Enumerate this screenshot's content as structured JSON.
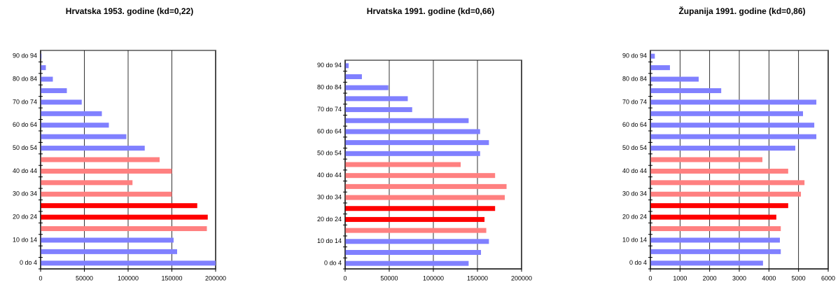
{
  "chart_data": [
    {
      "type": "bar",
      "title": "Hrvatska 1953. godine (kd=0,22)",
      "categories": [
        "0 do 4",
        null,
        "10 do 14",
        null,
        "20 do 24",
        null,
        "30 do 34",
        null,
        "40 do 44",
        null,
        "50 do 54",
        null,
        "60 do 64",
        null,
        "70 do 74",
        null,
        "80 do 84",
        null,
        "90 do 94"
      ],
      "values": [
        200000,
        156000,
        152000,
        190000,
        191000,
        179000,
        150000,
        105000,
        150000,
        136000,
        119000,
        98000,
        78000,
        70000,
        47000,
        30000,
        14000,
        6000,
        1000
      ],
      "colors": [
        "#8080ff",
        "#8080ff",
        "#8080ff",
        "#ff8080",
        "#ff0000",
        "#ff0000",
        "#ff8080",
        "#ff8080",
        "#ff8080",
        "#ff8080",
        "#8080ff",
        "#8080ff",
        "#8080ff",
        "#8080ff",
        "#8080ff",
        "#8080ff",
        "#8080ff",
        "#8080ff",
        "#8080ff"
      ],
      "xlim": [
        0,
        200000
      ],
      "xticks": [
        0,
        50000,
        100000,
        150000,
        200000
      ],
      "grid": true
    },
    {
      "type": "bar",
      "title": "Hrvatska 1991. godine (kd=0,66)",
      "categories": [
        "0 do 4",
        null,
        "10 do 14",
        null,
        "20 do 24",
        null,
        "30 do 34",
        null,
        "40 do 44",
        null,
        "50 do 54",
        null,
        "60 do 64",
        null,
        "70 do 74",
        null,
        "80 do 84",
        null,
        "90 do 94"
      ],
      "values": [
        140000,
        154000,
        163000,
        160000,
        158000,
        170000,
        181000,
        183000,
        170000,
        131000,
        153000,
        163000,
        153000,
        140000,
        76000,
        71000,
        49000,
        19000,
        4000
      ],
      "colors": [
        "#8080ff",
        "#8080ff",
        "#8080ff",
        "#ff8080",
        "#ff0000",
        "#ff0000",
        "#ff8080",
        "#ff8080",
        "#ff8080",
        "#ff8080",
        "#8080ff",
        "#8080ff",
        "#8080ff",
        "#8080ff",
        "#8080ff",
        "#8080ff",
        "#8080ff",
        "#8080ff",
        "#8080ff"
      ],
      "xlim": [
        0,
        200000
      ],
      "xticks": [
        0,
        50000,
        100000,
        150000,
        200000
      ],
      "grid": true
    },
    {
      "type": "bar",
      "title": "Županija 1991. godine (kd=0,86)",
      "categories": [
        "0 do 4",
        null,
        "10 do 14",
        null,
        "20 do 24",
        null,
        "30 do 34",
        null,
        "40 do 44",
        null,
        "50 do 54",
        null,
        "60 do 64",
        null,
        "70 do 74",
        null,
        "80 do 84",
        null,
        "90 do 94"
      ],
      "values": [
        3800,
        4400,
        4370,
        4400,
        4250,
        4650,
        5080,
        5200,
        4650,
        3780,
        4890,
        5600,
        5530,
        5150,
        5600,
        2390,
        1630,
        660,
        150
      ],
      "colors": [
        "#8080ff",
        "#8080ff",
        "#8080ff",
        "#ff8080",
        "#ff0000",
        "#ff0000",
        "#ff8080",
        "#ff8080",
        "#ff8080",
        "#ff8080",
        "#8080ff",
        "#8080ff",
        "#8080ff",
        "#8080ff",
        "#8080ff",
        "#8080ff",
        "#8080ff",
        "#8080ff",
        "#8080ff"
      ],
      "xlim": [
        0,
        6000
      ],
      "xticks": [
        0,
        1000,
        2000,
        3000,
        4000,
        5000,
        6000
      ],
      "grid": true
    }
  ]
}
